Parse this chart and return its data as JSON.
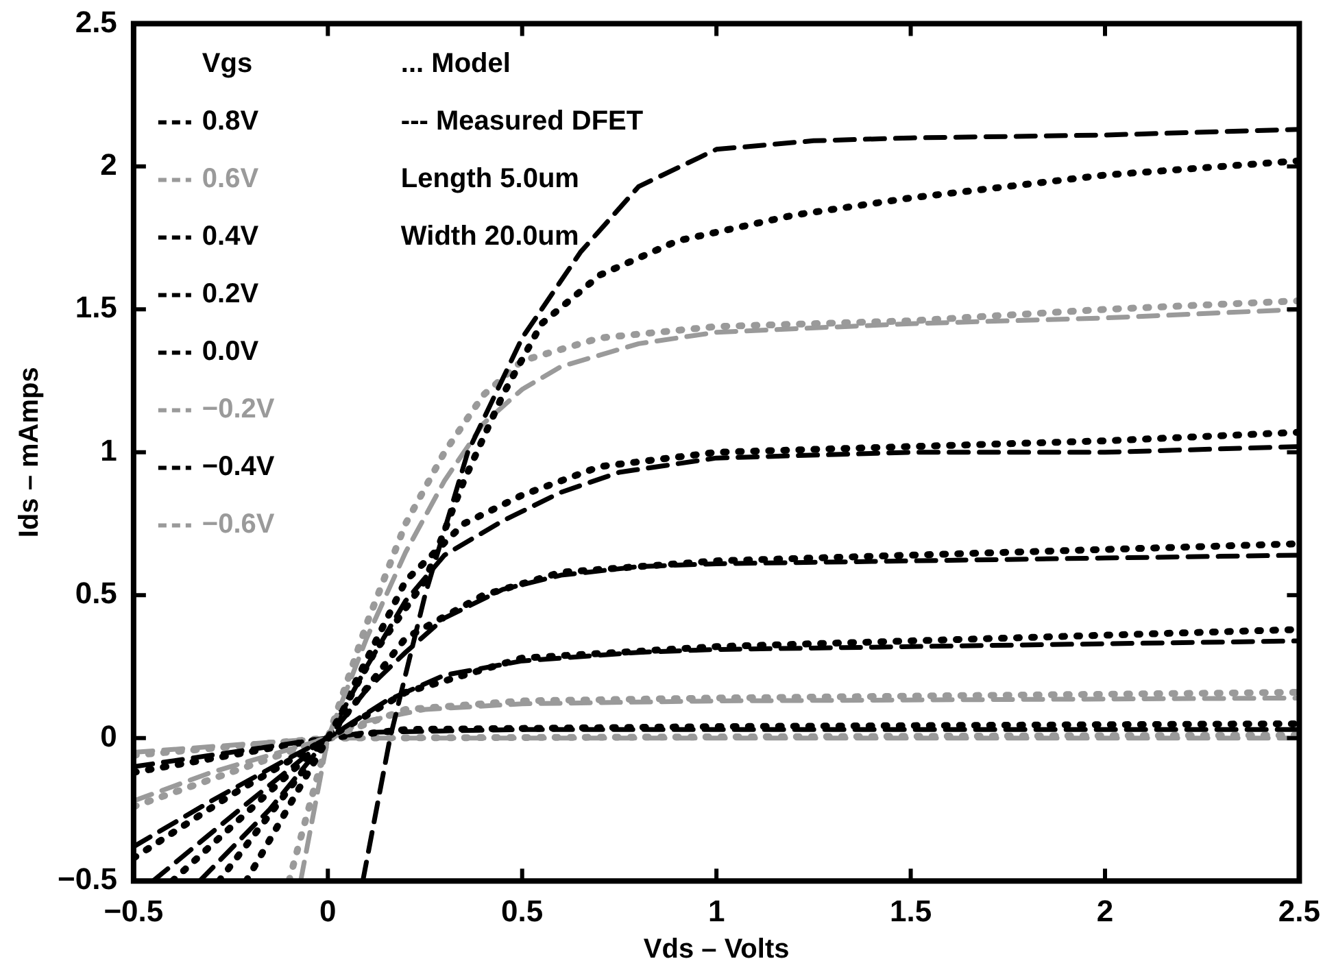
{
  "chart_data": {
    "type": "line",
    "xlabel": "Vds – Volts",
    "ylabel": "Ids – mAmps",
    "legend_title": "Vgs",
    "legend": "top left",
    "marker": "none",
    "grid": false,
    "xlim": [
      -0.5,
      2.5
    ],
    "xticks": [
      -0.5,
      0,
      0.5,
      1,
      1.5,
      2,
      2.5
    ],
    "ylim": [
      -0.5,
      2.5
    ],
    "yticks": [
      -0.5,
      0,
      0.5,
      1,
      1.5,
      2,
      2.5
    ],
    "annotations": [
      "... Model",
      "--- Measured DFET",
      "Length 5.0um",
      "Width 20.0um"
    ],
    "series": [
      {
        "name": "0.8V",
        "color": "#000000",
        "line_style": "dashed",
        "x": [
          0.09,
          0.16,
          0.25,
          0.36,
          0.5,
          0.65,
          0.8,
          1.0,
          1.25,
          1.5,
          2.0,
          2.5
        ],
        "values": [
          -0.5,
          0,
          0.5,
          1.0,
          1.4,
          1.7,
          1.93,
          2.06,
          2.09,
          2.1,
          2.11,
          2.13
        ]
      },
      {
        "color": "#000000",
        "line_style": "dotted",
        "x": [
          -0.21,
          0,
          0.12,
          0.25,
          0.35,
          0.45,
          0.55,
          0.7,
          0.9,
          1.2,
          1.5,
          2.0,
          2.5
        ],
        "values": [
          -0.5,
          0,
          0.3,
          0.55,
          0.9,
          1.2,
          1.45,
          1.62,
          1.74,
          1.83,
          1.89,
          1.97,
          2.02
        ]
      },
      {
        "name": "0.6V",
        "color": "#9a9a9a",
        "line_style": "dashed",
        "x": [
          -0.07,
          0,
          0.1,
          0.2,
          0.3,
          0.4,
          0.5,
          0.6,
          0.8,
          1.0,
          1.5,
          2.0,
          2.5
        ],
        "values": [
          -0.5,
          0,
          0.35,
          0.65,
          0.9,
          1.1,
          1.22,
          1.3,
          1.38,
          1.42,
          1.45,
          1.47,
          1.5
        ]
      },
      {
        "color": "#9a9a9a",
        "line_style": "dotted",
        "x": [
          -0.1,
          0,
          0.1,
          0.2,
          0.3,
          0.4,
          0.5,
          0.7,
          1.0,
          1.5,
          2.0,
          2.5
        ],
        "values": [
          -0.5,
          0,
          0.4,
          0.75,
          1.0,
          1.2,
          1.32,
          1.4,
          1.44,
          1.46,
          1.5,
          1.53
        ]
      },
      {
        "name": "0.4V",
        "color": "#000000",
        "line_style": "dashed",
        "x": [
          -0.33,
          -0.15,
          0,
          0.1,
          0.2,
          0.3,
          0.45,
          0.6,
          0.75,
          1.0,
          1.5,
          2.0,
          2.5
        ],
        "values": [
          -0.5,
          -0.25,
          0,
          0.25,
          0.48,
          0.64,
          0.76,
          0.86,
          0.93,
          0.98,
          1.0,
          1.0,
          1.02
        ]
      },
      {
        "color": "#000000",
        "line_style": "dotted",
        "x": [
          -0.28,
          0,
          0.2,
          0.35,
          0.5,
          0.7,
          1.0,
          1.5,
          2.0,
          2.5
        ],
        "values": [
          -0.5,
          0,
          0.55,
          0.75,
          0.85,
          0.95,
          1.0,
          1.02,
          1.04,
          1.07
        ]
      },
      {
        "name": "0.2V",
        "color": "#000000",
        "line_style": "dashed",
        "x": [
          -0.45,
          -0.2,
          0,
          0.1,
          0.2,
          0.3,
          0.45,
          0.6,
          0.8,
          1.0,
          1.5,
          2.0,
          2.5
        ],
        "values": [
          -0.5,
          -0.22,
          0,
          0.17,
          0.3,
          0.42,
          0.52,
          0.57,
          0.6,
          0.61,
          0.62,
          0.63,
          0.64
        ]
      },
      {
        "color": "#000000",
        "line_style": "dotted",
        "x": [
          -0.4,
          0,
          0.2,
          0.4,
          0.6,
          1.0,
          1.5,
          2.0,
          2.5
        ],
        "values": [
          -0.5,
          0,
          0.35,
          0.5,
          0.58,
          0.62,
          0.64,
          0.66,
          0.68
        ]
      },
      {
        "name": "0.0V",
        "color": "#000000",
        "line_style": "dashed",
        "x": [
          -0.5,
          -0.3,
          -0.1,
          0,
          0.15,
          0.3,
          0.5,
          0.8,
          1.0,
          1.5,
          2.0,
          2.5
        ],
        "values": [
          -0.38,
          -0.22,
          -0.07,
          0,
          0.13,
          0.22,
          0.27,
          0.3,
          0.31,
          0.32,
          0.33,
          0.34
        ]
      },
      {
        "color": "#000000",
        "line_style": "dotted",
        "x": [
          -0.5,
          -0.25,
          0,
          0.2,
          0.5,
          1.0,
          1.5,
          2.0,
          2.5
        ],
        "values": [
          -0.42,
          -0.2,
          0,
          0.16,
          0.28,
          0.32,
          0.34,
          0.36,
          0.38
        ]
      },
      {
        "name": "−0.2V",
        "color": "#9a9a9a",
        "line_style": "dashed",
        "x": [
          -0.5,
          -0.3,
          0,
          0.1,
          0.25,
          0.5,
          1.0,
          2.5
        ],
        "values": [
          -0.22,
          -0.12,
          0,
          0.06,
          0.1,
          0.12,
          0.13,
          0.14
        ]
      },
      {
        "color": "#9a9a9a",
        "line_style": "dotted",
        "x": [
          -0.5,
          0,
          0.2,
          0.5,
          1.0,
          2.5
        ],
        "values": [
          -0.24,
          0,
          0.1,
          0.13,
          0.14,
          0.16
        ]
      },
      {
        "name": "−0.4V",
        "color": "#000000",
        "line_style": "dashed",
        "x": [
          -0.5,
          0,
          0.1,
          0.5,
          2.5
        ],
        "values": [
          -0.1,
          0,
          0.02,
          0.03,
          0.03
        ]
      },
      {
        "color": "#000000",
        "line_style": "dotted",
        "x": [
          -0.5,
          0,
          0.2,
          1.0,
          2.5
        ],
        "values": [
          -0.12,
          0,
          0.03,
          0.04,
          0.05
        ]
      },
      {
        "name": "−0.6V",
        "color": "#9a9a9a",
        "line_style": "dashed",
        "x": [
          -0.5,
          0,
          2.5
        ],
        "values": [
          -0.05,
          0,
          0.0
        ]
      },
      {
        "color": "#9a9a9a",
        "line_style": "dotted",
        "x": [
          -0.5,
          0,
          2.5
        ],
        "values": [
          -0.06,
          0,
          0.01
        ]
      }
    ]
  }
}
